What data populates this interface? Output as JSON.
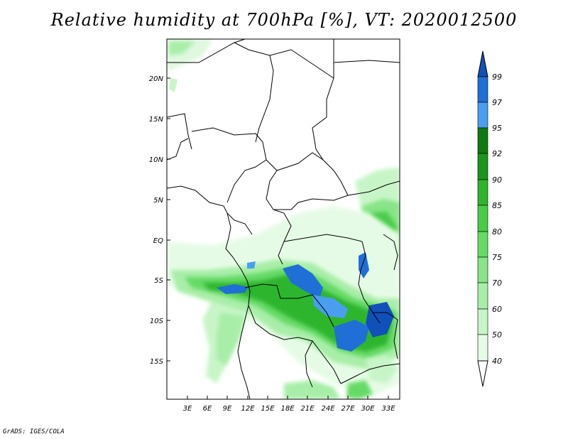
{
  "title": "Relative humidity at 700hPa [%], VT: 2020012500",
  "credit": "GrADS: IGES/COLA",
  "map": {
    "lat_labels": [
      "20N",
      "15N",
      "10N",
      "5N",
      "EQ",
      "5S",
      "10S",
      "15S"
    ],
    "lon_labels": [
      "3E",
      "6E",
      "9E",
      "12E",
      "15E",
      "18E",
      "21E",
      "24E",
      "27E",
      "30E",
      "33E"
    ]
  },
  "colorbar": {
    "levels": [
      "40",
      "50",
      "60",
      "70",
      "75",
      "80",
      "85",
      "90",
      "92",
      "95",
      "97",
      "99"
    ],
    "colors": [
      "#ffffff",
      "#e6fbe6",
      "#c8f5c8",
      "#a8eea8",
      "#87e587",
      "#66da66",
      "#48cc48",
      "#2eb52e",
      "#1a961a",
      "#0f7a0f",
      "#4a9ef0",
      "#1f6fd6",
      "#1150b8"
    ]
  }
}
